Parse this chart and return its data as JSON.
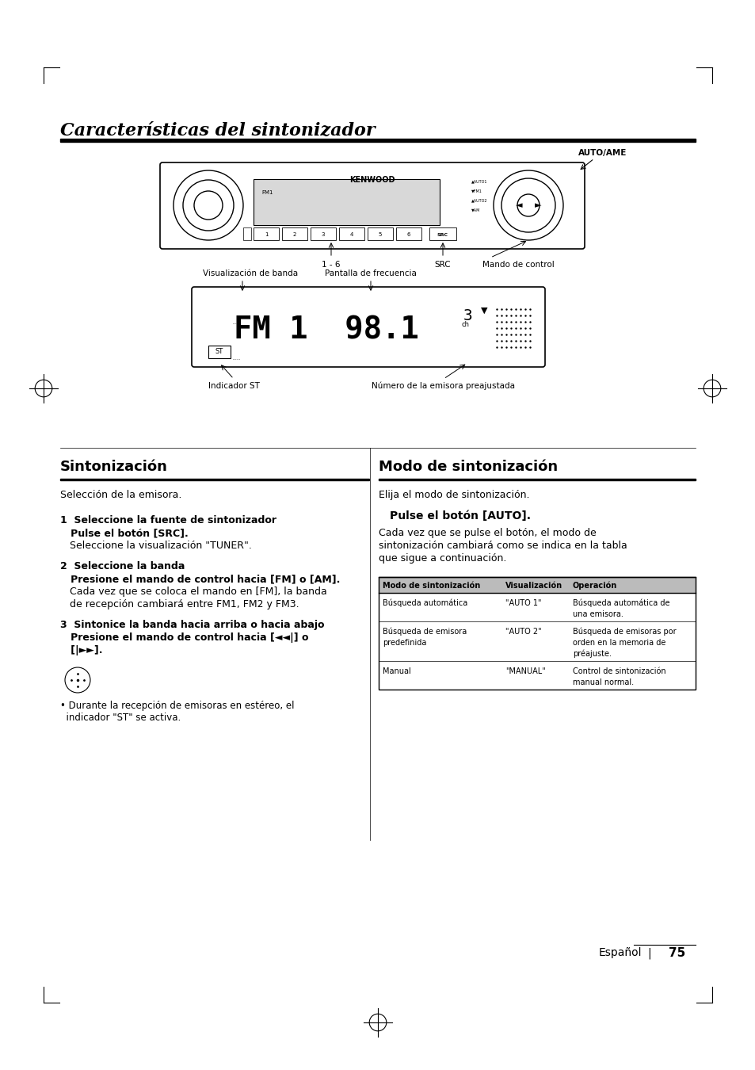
{
  "bg_color": "#ffffff",
  "page_title": "Características del sintonizador",
  "section1_title": "Sintonización",
  "section1_subtitle": "Selección de la emisora.",
  "section2_title": "Modo de sintonización",
  "section2_subtitle": "Elija el modo de sintonización.",
  "pulse_bold": "Pulse el botón [AUTO].",
  "pulse_normal": "Cada vez que se pulse el botón, el modo de\nsintonización cambiará como se indica en la tabla\nque sigue a continuación.",
  "table_header": [
    "Modo de sintonización",
    "Visualización",
    "Operación"
  ],
  "table_rows": [
    [
      "Búsqueda automática",
      "\"AUTO 1\"",
      "Búsqueda automática de\nuna emisora."
    ],
    [
      "Búsqueda de emisora\npredefinida",
      "\"AUTO 2\"",
      "Búsqueda de emisoras por\norden en la memoria de\npréajuste."
    ],
    [
      "Manual",
      "\"MANUAL\"",
      "Control de sintonización\nmanual normal."
    ]
  ],
  "label_auto_ame": "AUTO/AME",
  "label_1_6": "1 - 6",
  "label_src": "SRC",
  "label_mando": "Mando de control",
  "label_viz_banda": "Visualización de banda",
  "label_pantalla_frec": "Pantalla de frecuencia",
  "label_indicador_st": "Indicador ST",
  "label_num_emisora": "Número de la emisora preajustada",
  "footer_text": "Español",
  "footer_num": "75",
  "step1_h1": "1  Seleccione la fuente de sintonizador",
  "step1_h2": "   Pulse el botón [SRC].",
  "step1_b1": "   Seleccione la visualización \"TUNER\".",
  "step2_h1": "2  Seleccione la banda",
  "step2_h2": "   Presione el mando de control hacia [FM] o [AM].",
  "step2_b1": "   Cada vez que se coloca el mando en [FM], la banda",
  "step2_b2": "   de recepción cambiará entre FM1, FM2 y FM3.",
  "step3_h1": "3  Sintonice la banda hacia arriba o hacia abajo",
  "step3_h2": "   Presione el mando de control hacia [◄◄|] o",
  "step3_h3": "   [|►►].",
  "note": "• Durante la recepción de emisoras en estéreo, el\n  indicador \"ST\" se activa."
}
